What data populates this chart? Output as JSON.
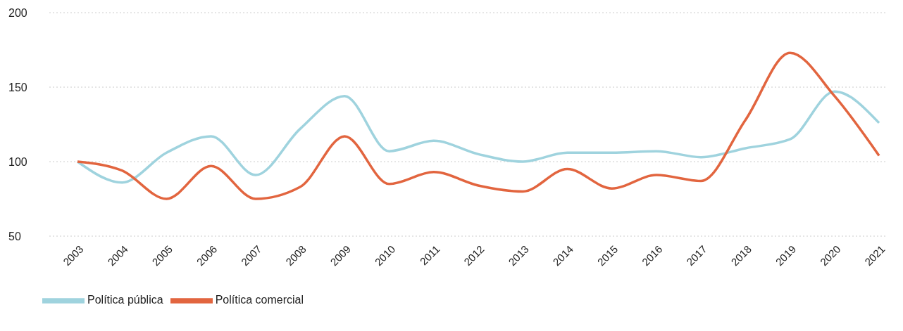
{
  "chart_data": {
    "type": "line",
    "categories": [
      "2003",
      "2004",
      "2005",
      "2006",
      "2007",
      "2008",
      "2009",
      "2010",
      "2011",
      "2012",
      "2013",
      "2014",
      "2015",
      "2016",
      "2017",
      "2018",
      "2019",
      "2020",
      "2021"
    ],
    "series": [
      {
        "name": "Política pública",
        "color": "#9fd3de",
        "values": [
          100,
          86,
          106,
          117,
          91,
          122,
          144,
          107,
          114,
          105,
          100,
          106,
          106,
          107,
          103,
          109,
          115,
          147,
          126
        ]
      },
      {
        "name": "Política comercial",
        "color": "#e2653f",
        "values": [
          100,
          94,
          75,
          97,
          75,
          83,
          117,
          85,
          93,
          84,
          80,
          95,
          82,
          91,
          87,
          128,
          173,
          144,
          104
        ]
      }
    ],
    "ylim": [
      50,
      200
    ],
    "yticks": [
      50,
      100,
      150,
      200
    ],
    "grid": "y",
    "legend": "bottom left",
    "marker": "none",
    "line_style": "solid"
  }
}
